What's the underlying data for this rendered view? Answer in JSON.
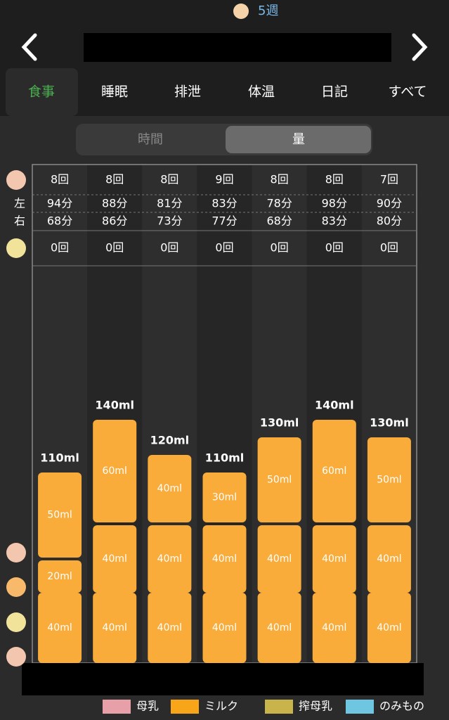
{
  "header": {
    "week": "5週"
  },
  "tabs": {
    "items": [
      "食事",
      "睡眠",
      "排泄",
      "体温",
      "日記",
      "すべて"
    ],
    "active": 0
  },
  "toggle": {
    "items": [
      "時間",
      "量"
    ],
    "active": 1
  },
  "table": {
    "side_labels": [
      "左",
      "右"
    ],
    "nursing_counts": [
      "8回",
      "8回",
      "8回",
      "9回",
      "8回",
      "8回",
      "7回"
    ],
    "left_minutes": [
      "94分",
      "88分",
      "81分",
      "83分",
      "78分",
      "98分",
      "90分"
    ],
    "right_minutes": [
      "68分",
      "86分",
      "73分",
      "77分",
      "68分",
      "83分",
      "80分"
    ],
    "pumped_counts": [
      "0回",
      "0回",
      "0回",
      "0回",
      "0回",
      "0回",
      "0回"
    ]
  },
  "chart": {
    "color": "#f9ac3a",
    "totals": [
      110,
      140,
      120,
      110,
      130,
      140,
      130
    ],
    "total_labels": [
      "110ml",
      "140ml",
      "120ml",
      "110ml",
      "130ml",
      "140ml",
      "130ml"
    ],
    "segments": [
      {
        "values": [
          40,
          40,
          40,
          40,
          40,
          40,
          40
        ],
        "value_labels": [
          "40ml",
          "40ml",
          "40ml",
          "40ml",
          "40ml",
          "40ml",
          "40ml"
        ]
      },
      {
        "values": [
          20,
          40,
          40,
          40,
          40,
          40,
          40
        ],
        "value_labels": [
          "20ml",
          "40ml",
          "40ml",
          "40ml",
          "40ml",
          "40ml",
          "40ml"
        ]
      },
      {
        "values": [
          50,
          60,
          40,
          30,
          50,
          60,
          50
        ],
        "value_labels": [
          "50ml",
          "60ml",
          "40ml",
          "30ml",
          "50ml",
          "60ml",
          "50ml"
        ]
      }
    ]
  },
  "legend": [
    {
      "name": "母乳",
      "color": "#e8a0a8"
    },
    {
      "name": "ミルク",
      "color": "#f9a51a"
    },
    {
      "name": "搾母乳",
      "color": "#c8b44a"
    },
    {
      "name": "のみもの",
      "color": "#6ec6e0"
    }
  ]
}
